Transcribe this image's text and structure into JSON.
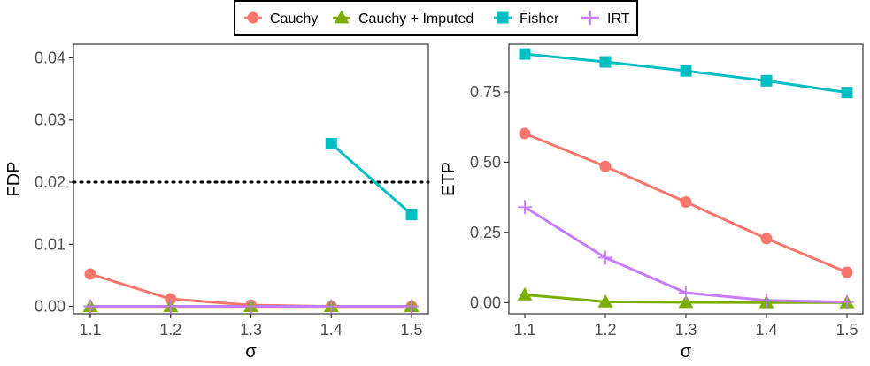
{
  "legend": {
    "items": [
      {
        "label": "Cauchy",
        "color": "#F8766D",
        "marker": "circle"
      },
      {
        "label": "Cauchy + Imputed",
        "color": "#7CAE00",
        "marker": "triangle"
      },
      {
        "label": "Fisher",
        "color": "#00BFC4",
        "marker": "square"
      },
      {
        "label": "IRT",
        "color": "#C77CFF",
        "marker": "plus"
      }
    ]
  },
  "chart_data": [
    {
      "type": "line",
      "xlabel": "σ",
      "ylabel": "FDP",
      "x": [
        1.1,
        1.2,
        1.3,
        1.4,
        1.5
      ],
      "x_tick_labels": [
        "1.1",
        "1.2",
        "1.3",
        "1.4",
        "1.5"
      ],
      "ylim": [
        -0.0012,
        0.0422
      ],
      "y_ticks": [
        0.0,
        0.01,
        0.02,
        0.03,
        0.04
      ],
      "y_tick_labels": [
        "0.00",
        "0.01",
        "0.02",
        "0.03",
        "0.04"
      ],
      "reference_line": {
        "y": 0.02,
        "style": "dotted"
      },
      "series": [
        {
          "name": "Cauchy",
          "values": [
            0.0052,
            0.0012,
            0.0002,
            0.0,
            0.0
          ]
        },
        {
          "name": "Cauchy + Imputed",
          "values": [
            0.0,
            0.0,
            0.0,
            0.0,
            0.0
          ]
        },
        {
          "name": "Fisher",
          "values": [
            null,
            null,
            null,
            0.0262,
            0.0148
          ]
        },
        {
          "name": "IRT",
          "values": [
            0.0,
            0.0,
            0.0,
            0.0,
            0.0
          ]
        }
      ]
    },
    {
      "type": "line",
      "xlabel": "σ",
      "ylabel": "ETP",
      "x": [
        1.1,
        1.2,
        1.3,
        1.4,
        1.5
      ],
      "x_tick_labels": [
        "1.1",
        "1.2",
        "1.3",
        "1.4",
        "1.5"
      ],
      "ylim": [
        -0.04,
        0.92
      ],
      "y_ticks": [
        0.0,
        0.25,
        0.5,
        0.75
      ],
      "y_tick_labels": [
        "0.00",
        "0.25",
        "0.50",
        "0.75"
      ],
      "series": [
        {
          "name": "Cauchy",
          "values": [
            0.602,
            0.485,
            0.358,
            0.228,
            0.108
          ]
        },
        {
          "name": "Cauchy + Imputed",
          "values": [
            0.028,
            0.003,
            0.001,
            0.0,
            0.0
          ]
        },
        {
          "name": "Fisher",
          "values": [
            0.885,
            0.857,
            0.825,
            0.79,
            0.748
          ]
        },
        {
          "name": "IRT",
          "values": [
            0.34,
            0.16,
            0.035,
            0.008,
            0.002
          ]
        }
      ]
    }
  ]
}
